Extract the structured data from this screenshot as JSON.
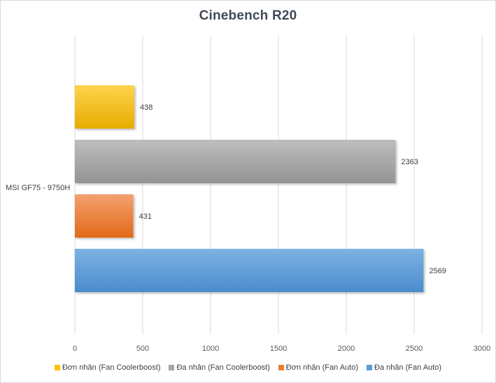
{
  "chart_data": {
    "type": "bar",
    "orientation": "horizontal",
    "title": "Cinebench R20",
    "categories": [
      "MSI GF75 - 9750H"
    ],
    "series": [
      {
        "name": "Đơn nhân (Fan Coolerboost)",
        "values": [
          438
        ],
        "color": "#ffc000"
      },
      {
        "name": "Đa nhân (Fan Coolerboost)",
        "values": [
          2363
        ],
        "color": "#a5a5a5"
      },
      {
        "name": "Đơn nhân (Fan Auto)",
        "values": [
          431
        ],
        "color": "#ed7d31"
      },
      {
        "name": "Đa nhân (Fan Auto)",
        "values": [
          2569
        ],
        "color": "#5b9bd5"
      }
    ],
    "xlim": [
      0,
      3000
    ],
    "xticks": [
      "0",
      "500",
      "1000",
      "1500",
      "2000",
      "2500",
      "3000"
    ],
    "grid": true,
    "legend": "bottom"
  }
}
